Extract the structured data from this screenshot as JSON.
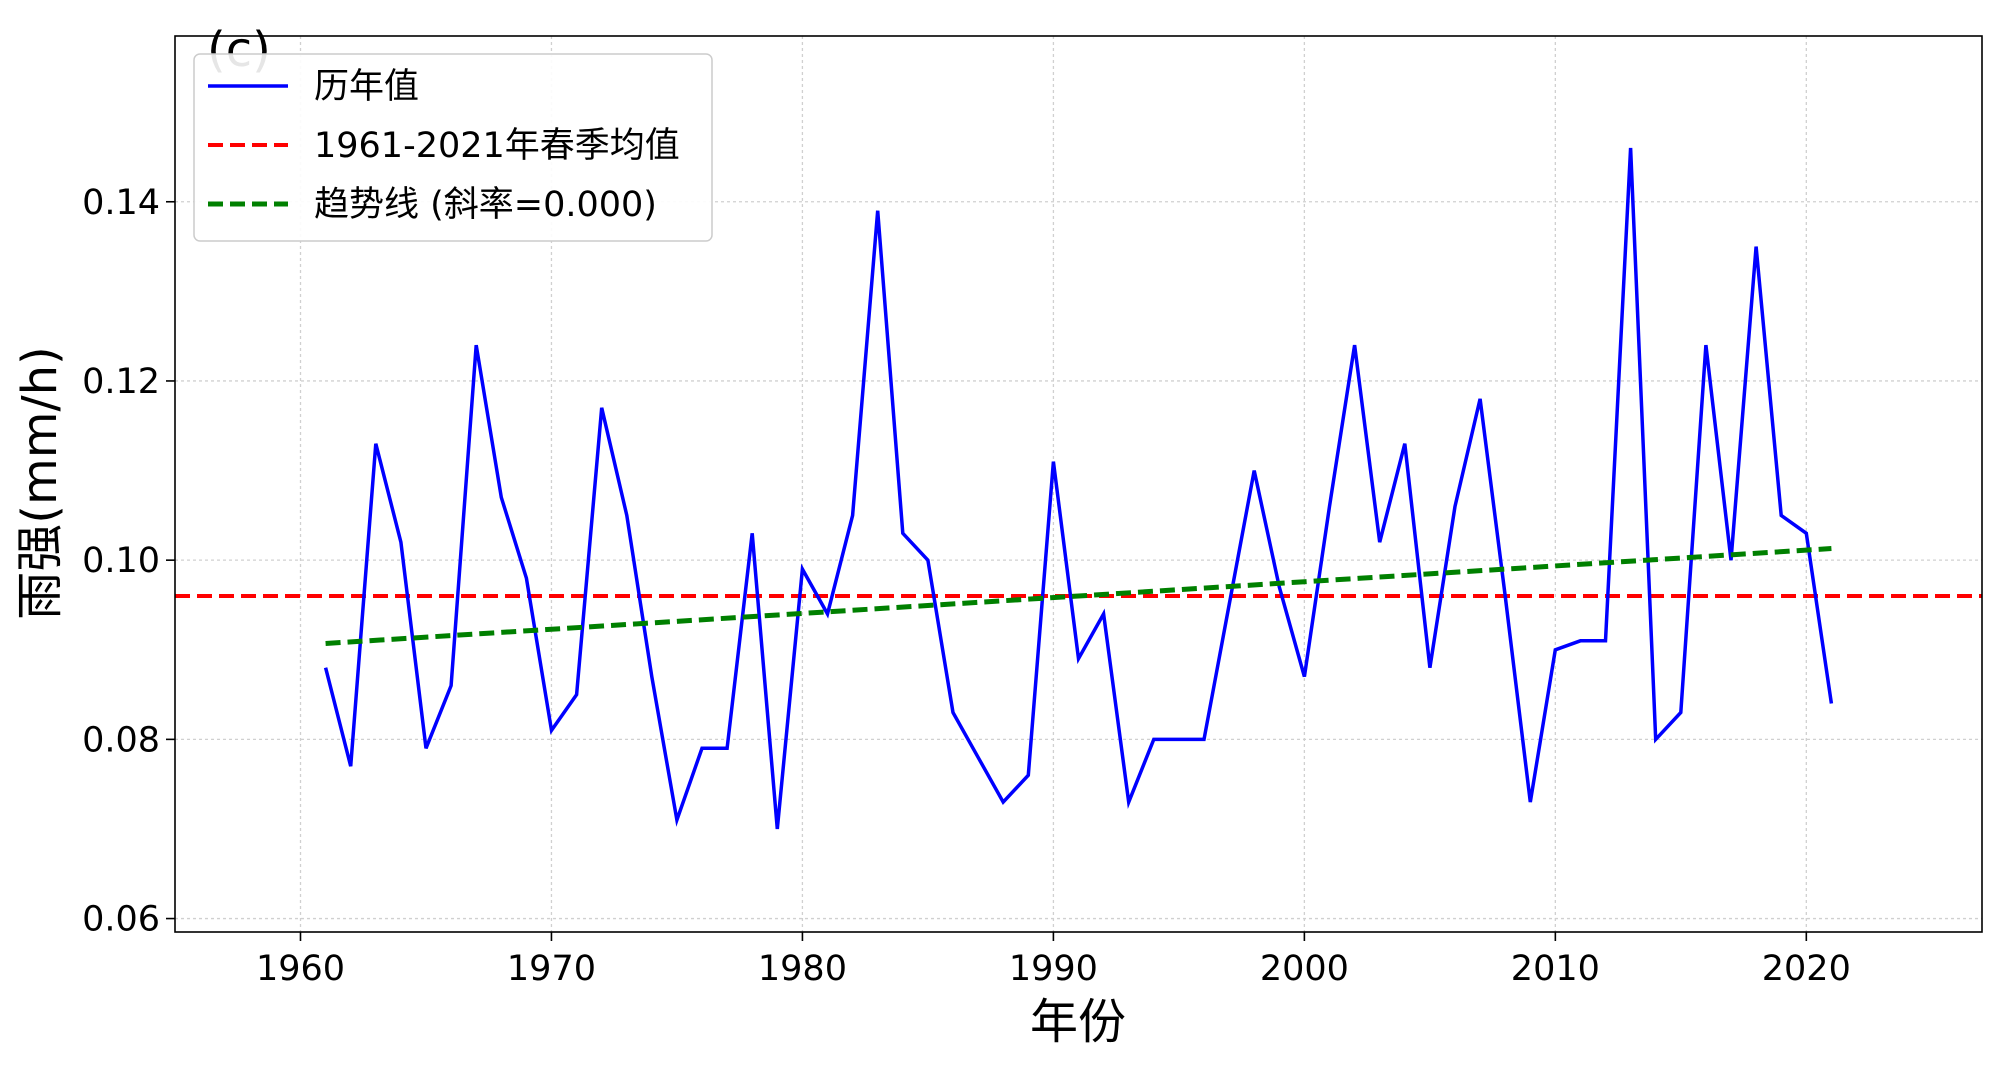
{
  "chart_data": {
    "type": "line",
    "panel_label": "(c)",
    "xlabel": "年份",
    "ylabel": "雨强(mm/h)",
    "xlim": [
      1955,
      2027
    ],
    "ylim": [
      0.0585,
      0.1585
    ],
    "x_ticks": [
      1960,
      1970,
      1980,
      1990,
      2000,
      2010,
      2020
    ],
    "x_tick_labels": [
      "1960",
      "1970",
      "1980",
      "1990",
      "2000",
      "2010",
      "2020"
    ],
    "y_ticks": [
      0.06,
      0.08,
      0.1,
      0.12,
      0.14
    ],
    "y_tick_labels": [
      "0.06",
      "0.08",
      "0.10",
      "0.12",
      "0.14"
    ],
    "grid": true,
    "legend_position": "top-left",
    "legend": [
      {
        "label": "历年值",
        "style": "solid",
        "color": "#0000ff"
      },
      {
        "label": "1961-2021年春季均值",
        "style": "dashed",
        "color": "#ff0000"
      },
      {
        "label": "趋势线 (斜率=0.000)",
        "style": "dashed",
        "color": "#008000"
      }
    ],
    "series": [
      {
        "name": "历年值",
        "color": "#0000ff",
        "style": "solid",
        "x": [
          1961,
          1962,
          1963,
          1964,
          1965,
          1966,
          1967,
          1968,
          1969,
          1970,
          1971,
          1972,
          1973,
          1974,
          1975,
          1976,
          1977,
          1978,
          1979,
          1980,
          1981,
          1982,
          1983,
          1984,
          1985,
          1986,
          1987,
          1988,
          1989,
          1990,
          1991,
          1992,
          1993,
          1994,
          1995,
          1996,
          1997,
          1998,
          1999,
          2000,
          2001,
          2002,
          2003,
          2004,
          2005,
          2006,
          2007,
          2008,
          2009,
          2010,
          2011,
          2012,
          2013,
          2014,
          2015,
          2016,
          2017,
          2018,
          2019,
          2020,
          2021
        ],
        "y": [
          0.088,
          0.077,
          0.113,
          0.102,
          0.079,
          0.086,
          0.124,
          0.107,
          0.098,
          0.081,
          0.085,
          0.117,
          0.105,
          0.087,
          0.071,
          0.079,
          0.079,
          0.103,
          0.07,
          0.099,
          0.094,
          0.105,
          0.139,
          0.103,
          0.1,
          0.083,
          0.078,
          0.073,
          0.076,
          0.111,
          0.089,
          0.094,
          0.073,
          0.08,
          0.08,
          0.08,
          0.095,
          0.11,
          0.097,
          0.087,
          0.106,
          0.124,
          0.102,
          0.113,
          0.088,
          0.106,
          0.118,
          0.096,
          0.073,
          0.09,
          0.091,
          0.091,
          0.146,
          0.08,
          0.083,
          0.124,
          0.1,
          0.135,
          0.105,
          0.103,
          0.084
        ]
      },
      {
        "name": "1961-2021年春季均值",
        "color": "#ff0000",
        "style": "dashed",
        "y_constant": 0.096
      },
      {
        "name": "趋势线 (斜率=0.000)",
        "color": "#008000",
        "style": "dashed",
        "x": [
          1961,
          2021
        ],
        "y": [
          0.0907,
          0.1013
        ]
      }
    ]
  }
}
